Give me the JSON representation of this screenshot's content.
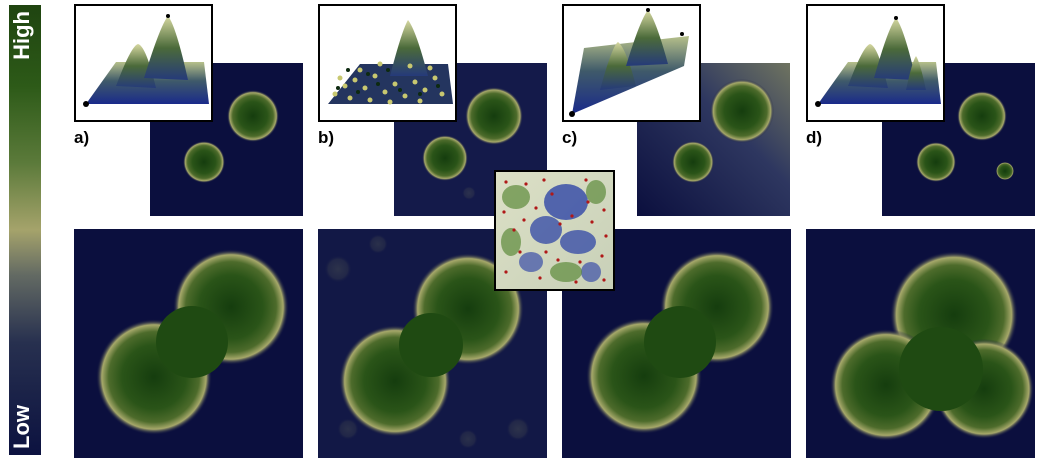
{
  "colorbar": {
    "high_label": "High",
    "low_label": "Low"
  },
  "panel_labels": {
    "a": "a)",
    "b": "b)",
    "c": "c)",
    "d": "d)"
  }
}
